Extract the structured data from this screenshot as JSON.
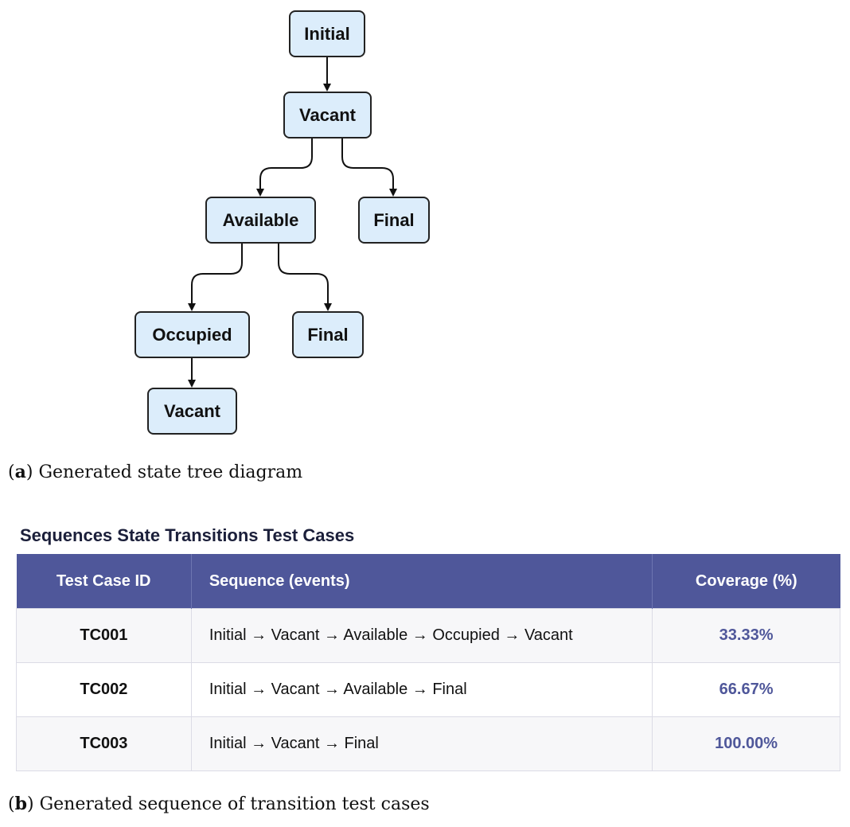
{
  "tree": {
    "nodes": {
      "initial": "Initial",
      "vacant_1": "Vacant",
      "available": "Available",
      "final_1": "Final",
      "occupied": "Occupied",
      "final_2": "Final",
      "vacant_2": "Vacant"
    },
    "edges": [
      [
        "initial",
        "vacant_1"
      ],
      [
        "vacant_1",
        "available"
      ],
      [
        "vacant_1",
        "final_1"
      ],
      [
        "available",
        "occupied"
      ],
      [
        "available",
        "final_2"
      ],
      [
        "occupied",
        "vacant_2"
      ]
    ]
  },
  "caption_a": {
    "letter": "a",
    "text": " Generated state tree diagram"
  },
  "table": {
    "title": "Sequences State Transitions Test Cases",
    "headers": [
      "Test Case ID",
      "Sequence (events)",
      "Coverage (%)"
    ],
    "rows": [
      {
        "id": "TC001",
        "sequence": "Initial → Vacant → Available → Occupied → Vacant",
        "coverage": "33.33%"
      },
      {
        "id": "TC002",
        "sequence": "Initial → Vacant → Available → Final",
        "coverage": "66.67%"
      },
      {
        "id": "TC003",
        "sequence": "Initial → Vacant → Final",
        "coverage": "100.00%"
      }
    ]
  },
  "caption_b": {
    "letter": "b",
    "text": " Generated sequence of transition test cases"
  }
}
